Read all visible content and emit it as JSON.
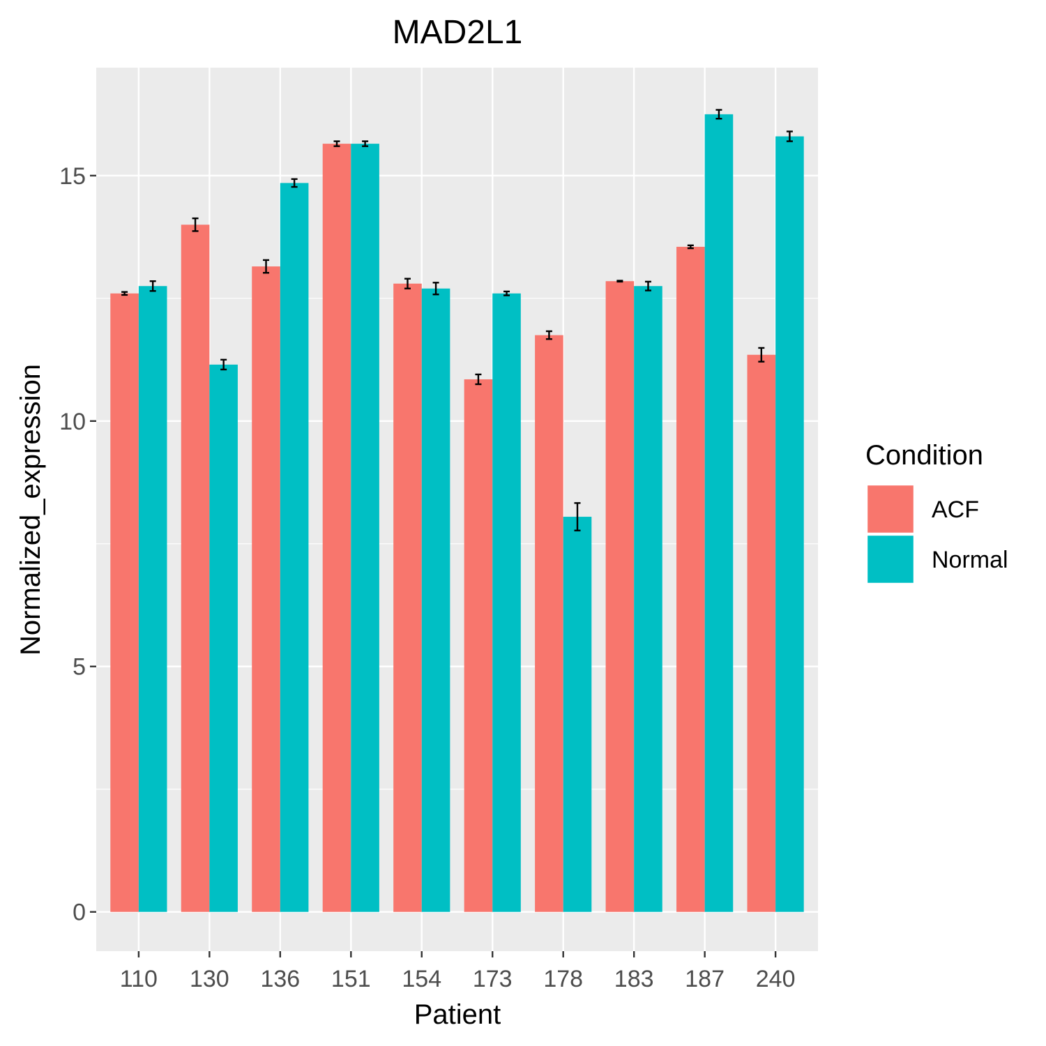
{
  "chart_data": {
    "type": "bar",
    "title": "MAD2L1",
    "xlabel": "Patient",
    "ylabel": "Normalized_expression",
    "categories": [
      "110",
      "130",
      "136",
      "151",
      "154",
      "173",
      "178",
      "183",
      "187",
      "240"
    ],
    "ylim": [
      -0.8,
      17.2
    ],
    "yticks": [
      0,
      5,
      10,
      15
    ],
    "grid": true,
    "legend": {
      "title": "Condition",
      "position": "right"
    },
    "series": [
      {
        "name": "ACF",
        "color": "#F8766D",
        "values": [
          12.6,
          14.0,
          13.15,
          15.65,
          12.8,
          10.85,
          11.75,
          12.85,
          13.55,
          11.35
        ],
        "errors": [
          0.03,
          0.13,
          0.13,
          0.05,
          0.1,
          0.1,
          0.08,
          0.01,
          0.03,
          0.14
        ]
      },
      {
        "name": "Normal",
        "color": "#00BFC4",
        "values": [
          12.75,
          11.15,
          14.85,
          15.65,
          12.7,
          12.6,
          8.05,
          12.75,
          16.25,
          15.8
        ],
        "errors": [
          0.1,
          0.1,
          0.08,
          0.05,
          0.12,
          0.04,
          0.28,
          0.09,
          0.09,
          0.1
        ]
      }
    ]
  }
}
